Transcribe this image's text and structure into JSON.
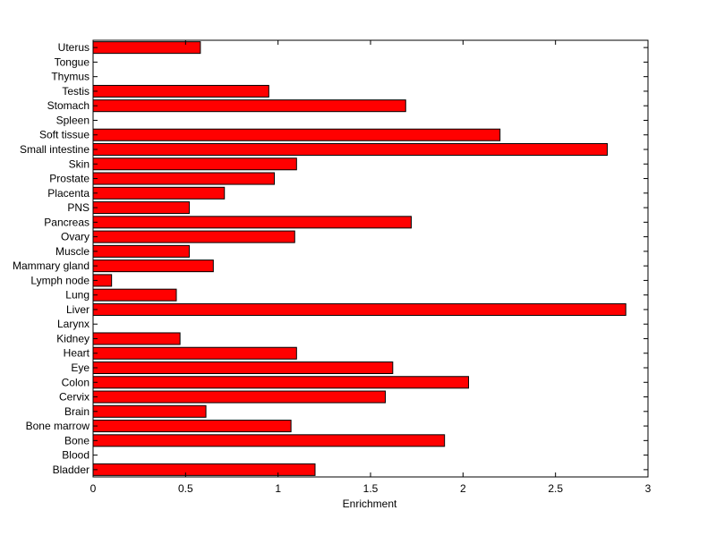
{
  "chart_data": {
    "type": "bar",
    "orientation": "horizontal",
    "title": "",
    "xlabel": "Enrichment",
    "ylabel": "",
    "xlim": [
      0,
      3
    ],
    "xticks": [
      0,
      0.5,
      1,
      1.5,
      2,
      2.5,
      3
    ],
    "xtick_labels": [
      "0",
      "0.5",
      "1",
      "1.5",
      "2",
      "2.5",
      "3"
    ],
    "grid": false,
    "legend": "none",
    "bar_color": "#ff0000",
    "bar_edge_color": "#000000",
    "categories": [
      "Bladder",
      "Blood",
      "Bone",
      "Bone marrow",
      "Brain",
      "Cervix",
      "Colon",
      "Eye",
      "Heart",
      "Kidney",
      "Larynx",
      "Liver",
      "Lung",
      "Lymph node",
      "Mammary gland",
      "Muscle",
      "Ovary",
      "Pancreas",
      "PNS",
      "Placenta",
      "Prostate",
      "Skin",
      "Small intestine",
      "Soft tissue",
      "Spleen",
      "Stomach",
      "Testis",
      "Thymus",
      "Tongue",
      "Uterus"
    ],
    "values": [
      1.2,
      0,
      1.9,
      1.07,
      0.61,
      1.58,
      2.03,
      1.62,
      1.1,
      0.47,
      0,
      2.88,
      0.45,
      0.1,
      0.65,
      0.52,
      1.09,
      1.72,
      0.52,
      0.71,
      0.98,
      1.1,
      2.78,
      2.2,
      0,
      1.69,
      0.95,
      0,
      0,
      0.58
    ]
  }
}
